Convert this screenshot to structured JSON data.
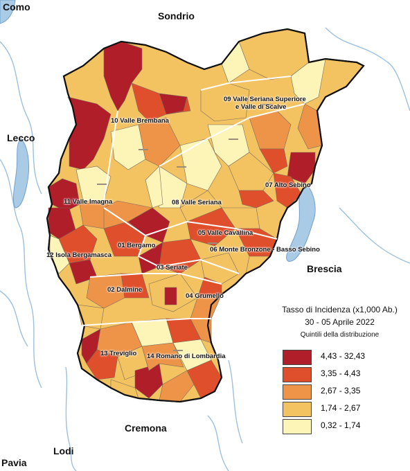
{
  "map": {
    "neighbors": {
      "como": "Como",
      "sondrio": "Sondrio",
      "lecco": "Lecco",
      "brescia": "Brescia",
      "cremona": "Cremona",
      "lodi": "Lodi",
      "pavia": "Pavia"
    },
    "districts": {
      "d01": "01 Bergamo",
      "d02": "02 Dalmine",
      "d03": "03 Seriate",
      "d04": "04 Grumello",
      "d05": "05 Valle Cavallina",
      "d06": "06 Monte Bronzone - Basso Sebino",
      "d07": "07 Alto Sebino",
      "d08": "08 Valle Seriana",
      "d09a": "09 Valle Seriana Superiore",
      "d09b": "e Valle di Scalve",
      "d10": "10 Valle Brembana",
      "d11": "11 Valle Imagna",
      "d12": "12 Isola Bergamasca",
      "d13": "13 Treviglio",
      "d14": "14 Romano di Lombardia"
    }
  },
  "legend": {
    "title": "Tasso di Incidenza (x1,000 Ab.)",
    "date": "30 - 05 Aprile 2022",
    "subtitle": "Quintili della distribuzione",
    "classes": [
      {
        "label": "4,43 - 32,43",
        "color": "#b01e2a"
      },
      {
        "label": "3,35 - 4,43",
        "color": "#e04f2b"
      },
      {
        "label": "2,67 - 3,35",
        "color": "#ee9448"
      },
      {
        "label": "1,74 - 2,67",
        "color": "#f4c361"
      },
      {
        "label": "0,32 - 1,74",
        "color": "#fdf4b8"
      }
    ]
  },
  "colors": {
    "water": "#aacbe6",
    "background": "#ffffff",
    "neighbor_land": "#f4f4f4"
  }
}
